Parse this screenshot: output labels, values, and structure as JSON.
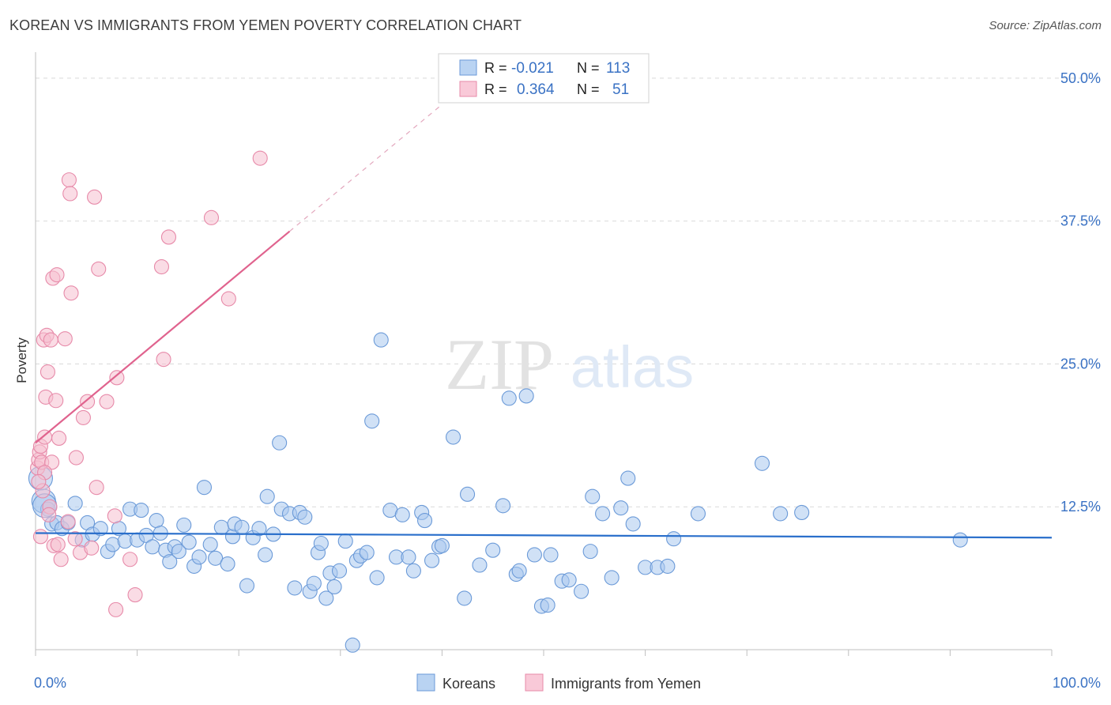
{
  "title": "KOREAN VS IMMIGRANTS FROM YEMEN POVERTY CORRELATION CHART",
  "source": "Source: ZipAtlas.com",
  "watermark": {
    "zip": "ZIP",
    "atlas": "atlas"
  },
  "colors": {
    "blue_fill": "#a9c8ee",
    "blue_stroke": "#6b9ad8",
    "blue_line": "#2a6fcb",
    "pink_fill": "#f6bfd0",
    "pink_stroke": "#e78aa9",
    "pink_line": "#e0638e",
    "axis_label": "#3a72c4",
    "grid": "#d9d9d9"
  },
  "legend": {
    "rows": [
      {
        "r_label": "R =",
        "r_value": "-0.021",
        "n_label": "N =",
        "n_value": "113",
        "series": "blue"
      },
      {
        "r_label": "R =",
        "r_value": "0.364",
        "n_label": "N =",
        "n_value": "51",
        "series": "pink"
      }
    ]
  },
  "bottom_legend": [
    "Koreans",
    "Immigrants from Yemen"
  ],
  "chart_data": {
    "type": "scatter",
    "ylabel": "Poverty",
    "xlim": [
      0,
      100
    ],
    "ylim": [
      0,
      52
    ],
    "x_tick_labels": [
      {
        "value": 0,
        "label": "0.0%"
      },
      {
        "value": 100,
        "label": "100.0%"
      }
    ],
    "y_ticks": [
      {
        "value": 12.5,
        "label": "12.5%"
      },
      {
        "value": 25,
        "label": "25.0%"
      },
      {
        "value": 37.5,
        "label": "37.5%"
      },
      {
        "value": 50,
        "label": "50.0%"
      }
    ],
    "grid": "horizontal dashed",
    "series": [
      {
        "name": "Koreans",
        "color": "blue",
        "trend": {
          "x0": 0,
          "y0": 10.2,
          "x1": 100,
          "y1": 9.8
        },
        "points": [
          [
            0.5,
            15.0
          ],
          [
            0.8,
            13.0
          ],
          [
            1.2,
            12.3
          ],
          [
            1.6,
            11.0
          ],
          [
            2.1,
            11.1
          ],
          [
            2.6,
            10.6
          ],
          [
            3.2,
            11.1
          ],
          [
            3.9,
            12.8
          ],
          [
            4.6,
            9.6
          ],
          [
            5.1,
            11.1
          ],
          [
            5.6,
            10.1
          ],
          [
            6.4,
            10.6
          ],
          [
            7.1,
            8.6
          ],
          [
            7.6,
            9.2
          ],
          [
            8.2,
            10.6
          ],
          [
            8.8,
            9.5
          ],
          [
            9.3,
            12.3
          ],
          [
            10.0,
            9.6
          ],
          [
            10.4,
            12.2
          ],
          [
            10.9,
            10.0
          ],
          [
            11.5,
            9.0
          ],
          [
            11.9,
            11.3
          ],
          [
            12.3,
            10.2
          ],
          [
            12.8,
            8.7
          ],
          [
            13.2,
            7.7
          ],
          [
            13.7,
            9.0
          ],
          [
            14.1,
            8.6
          ],
          [
            14.6,
            10.9
          ],
          [
            15.1,
            9.4
          ],
          [
            15.6,
            7.3
          ],
          [
            16.1,
            8.1
          ],
          [
            16.6,
            14.2
          ],
          [
            17.2,
            9.2
          ],
          [
            17.7,
            8.0
          ],
          [
            18.3,
            10.7
          ],
          [
            18.9,
            7.5
          ],
          [
            19.4,
            9.9
          ],
          [
            19.6,
            11.0
          ],
          [
            20.3,
            10.7
          ],
          [
            20.8,
            5.6
          ],
          [
            21.4,
            9.8
          ],
          [
            22.0,
            10.6
          ],
          [
            22.6,
            8.3
          ],
          [
            22.8,
            13.4
          ],
          [
            23.4,
            10.1
          ],
          [
            24.0,
            18.1
          ],
          [
            24.2,
            12.3
          ],
          [
            25.0,
            11.9
          ],
          [
            25.5,
            5.4
          ],
          [
            26.0,
            12.0
          ],
          [
            26.5,
            11.6
          ],
          [
            27.0,
            5.1
          ],
          [
            27.4,
            5.8
          ],
          [
            27.8,
            8.5
          ],
          [
            28.1,
            9.3
          ],
          [
            28.6,
            4.5
          ],
          [
            29.0,
            6.7
          ],
          [
            29.4,
            5.5
          ],
          [
            29.9,
            6.9
          ],
          [
            30.5,
            9.5
          ],
          [
            31.2,
            0.4
          ],
          [
            31.6,
            7.8
          ],
          [
            32.0,
            8.2
          ],
          [
            32.6,
            8.5
          ],
          [
            33.1,
            20.0
          ],
          [
            33.6,
            6.3
          ],
          [
            34.0,
            27.1
          ],
          [
            34.9,
            12.2
          ],
          [
            35.5,
            8.1
          ],
          [
            36.1,
            11.8
          ],
          [
            36.7,
            8.1
          ],
          [
            37.2,
            6.9
          ],
          [
            38.0,
            12.0
          ],
          [
            38.3,
            11.3
          ],
          [
            39.0,
            7.8
          ],
          [
            39.7,
            9.0
          ],
          [
            40.0,
            9.1
          ],
          [
            41.1,
            18.6
          ],
          [
            42.2,
            4.5
          ],
          [
            42.5,
            13.6
          ],
          [
            43.7,
            7.4
          ],
          [
            45.0,
            8.7
          ],
          [
            46.0,
            12.6
          ],
          [
            46.6,
            22.0
          ],
          [
            47.3,
            6.6
          ],
          [
            47.6,
            6.9
          ],
          [
            48.3,
            22.2
          ],
          [
            49.1,
            8.3
          ],
          [
            49.8,
            3.8
          ],
          [
            50.4,
            3.9
          ],
          [
            50.7,
            8.3
          ],
          [
            51.8,
            6.0
          ],
          [
            52.5,
            6.1
          ],
          [
            53.7,
            5.1
          ],
          [
            54.6,
            8.6
          ],
          [
            54.8,
            13.4
          ],
          [
            55.8,
            11.9
          ],
          [
            56.7,
            6.3
          ],
          [
            57.6,
            12.4
          ],
          [
            58.3,
            15.0
          ],
          [
            58.8,
            11.0
          ],
          [
            60.0,
            7.2
          ],
          [
            61.2,
            7.2
          ],
          [
            62.2,
            7.3
          ],
          [
            62.8,
            9.7
          ],
          [
            65.2,
            11.9
          ],
          [
            71.5,
            16.3
          ],
          [
            73.3,
            11.9
          ],
          [
            75.4,
            12.0
          ],
          [
            91.0,
            9.6
          ],
          [
            0.9,
            12.6
          ]
        ]
      },
      {
        "name": "Immigrants from Yemen",
        "color": "pink",
        "trend": {
          "x0": 0,
          "y0": 18.1,
          "x1": 25,
          "y1": 36.6,
          "dash_to_x": 40,
          "dash_to_y": 47.7
        },
        "points": [
          [
            0.2,
            15.9
          ],
          [
            0.3,
            16.6
          ],
          [
            0.4,
            17.3
          ],
          [
            0.5,
            17.8
          ],
          [
            0.6,
            16.4
          ],
          [
            0.7,
            13.9
          ],
          [
            0.8,
            27.1
          ],
          [
            0.9,
            18.6
          ],
          [
            1.0,
            22.1
          ],
          [
            1.1,
            27.5
          ],
          [
            1.2,
            24.3
          ],
          [
            1.4,
            12.5
          ],
          [
            1.5,
            27.1
          ],
          [
            1.6,
            16.4
          ],
          [
            1.7,
            32.5
          ],
          [
            1.8,
            9.1
          ],
          [
            2.0,
            21.8
          ],
          [
            2.1,
            32.8
          ],
          [
            2.2,
            9.2
          ],
          [
            2.3,
            18.5
          ],
          [
            2.5,
            7.9
          ],
          [
            2.9,
            27.2
          ],
          [
            3.2,
            11.2
          ],
          [
            3.3,
            41.1
          ],
          [
            3.4,
            39.9
          ],
          [
            3.5,
            31.2
          ],
          [
            3.9,
            9.7
          ],
          [
            4.0,
            16.8
          ],
          [
            4.4,
            8.5
          ],
          [
            4.7,
            20.3
          ],
          [
            5.1,
            21.7
          ],
          [
            5.5,
            8.9
          ],
          [
            5.8,
            39.6
          ],
          [
            6.0,
            14.2
          ],
          [
            6.2,
            33.3
          ],
          [
            7.0,
            21.7
          ],
          [
            7.8,
            11.7
          ],
          [
            7.9,
            3.5
          ],
          [
            8.0,
            23.8
          ],
          [
            9.3,
            7.9
          ],
          [
            9.8,
            4.8
          ],
          [
            12.4,
            33.5
          ],
          [
            12.6,
            25.4
          ],
          [
            13.1,
            36.1
          ],
          [
            17.3,
            37.8
          ],
          [
            19.0,
            30.7
          ],
          [
            22.1,
            43.0
          ],
          [
            0.5,
            9.9
          ],
          [
            1.3,
            11.8
          ],
          [
            0.9,
            15.5
          ],
          [
            0.3,
            14.7
          ]
        ]
      }
    ]
  }
}
